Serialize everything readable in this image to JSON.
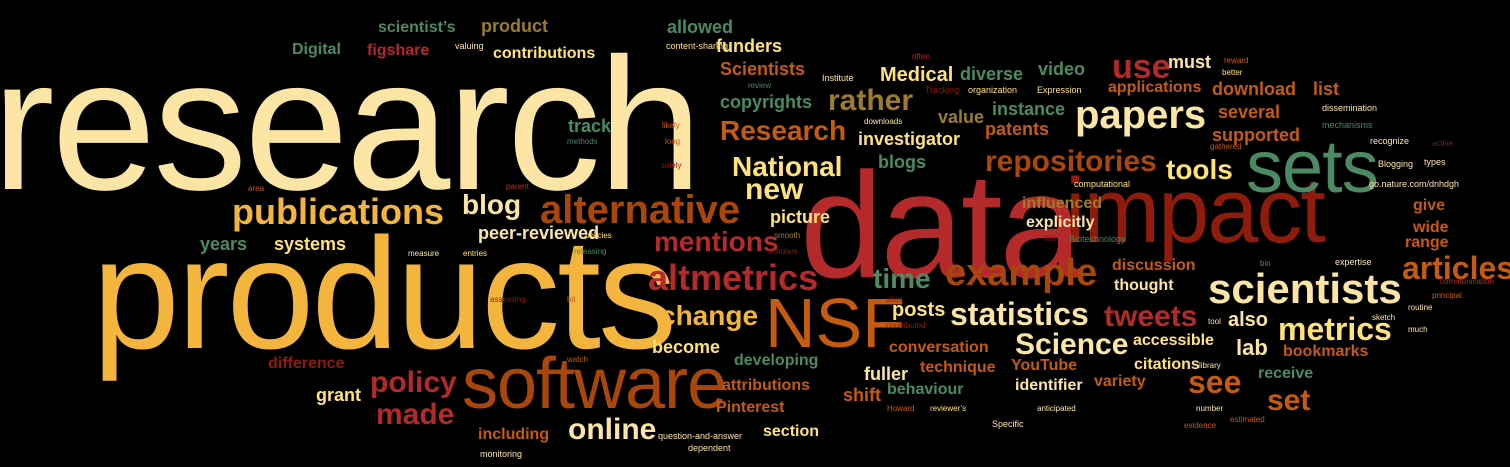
{
  "palette": {
    "cream": "#fde6a5",
    "gold": "#f4b53f",
    "yellow": "#ffe27a",
    "red": "#b4292a",
    "darkred": "#8e1b0c",
    "orange": "#c55a11",
    "rust": "#a8460c",
    "green": "#4b8a63",
    "olive": "#9c7c2c"
  },
  "words": {
    "research": "research",
    "products": "products",
    "data": "data",
    "impact": "impact",
    "software": "software",
    "sets": "sets",
    "nsf": "NSF",
    "papers": "papers",
    "scientists": "scientists",
    "alternative": "alternative",
    "publications": "publications",
    "altmetrics": "altmetrics",
    "example": "example",
    "repositories": "repositories",
    "statistics": "statistics",
    "metrics": "metrics",
    "tweets": "tweets",
    "articles": "articles",
    "Science": "Science",
    "online": "online",
    "policy": "policy",
    "made": "made",
    "mentions": "mentions",
    "change": "change",
    "National": "National",
    "new": "new",
    "blog": "blog",
    "use": "use",
    "Research": "Research",
    "rather": "rather",
    "tools": "tools",
    "set": "set",
    "see": "see",
    "time": "time",
    "Medical": "Medical",
    "posts": "posts",
    "lab": "lab",
    "also": "also",
    "become": "become",
    "fuller": "fuller",
    "shift": "shift",
    "grant": "grant",
    "years": "years",
    "systems": "systems",
    "peerreviewed": "peer-reviewed",
    "picture": "picture",
    "blogs": "blogs",
    "investigator": "investigator",
    "value": "value",
    "patents": "patents",
    "instance": "instance",
    "diverse": "diverse",
    "video": "video",
    "must": "must",
    "applications": "applications",
    "download": "download",
    "list": "list",
    "several": "several",
    "supported": "supported",
    "copyrights": "copyrights",
    "Scientists": "Scientists",
    "track": "track",
    "funders": "funders",
    "allowed": "allowed",
    "product": "product",
    "scientists_s": "scientist’s",
    "Digital": "Digital",
    "figshare": "figshare",
    "contributions": "contributions",
    "influenced": "influenced",
    "explicitly": "explicitly",
    "give": "give",
    "wide": "wide",
    "discussion": "discussion",
    "thought": "thought",
    "range": "range",
    "accessible": "accessible",
    "citations": "citations",
    "receive": "receive",
    "bookmarks": "bookmarks",
    "variety": "variety",
    "YouTube": "YouTube",
    "identifier": "identifier",
    "conversation": "conversation",
    "technique": "technique",
    "behaviour": "behaviour",
    "developing": "developing",
    "attributions": "attributions",
    "Pinterest": "Pinterest",
    "section": "section",
    "including": "including",
    "difference": "difference",
    "valuing": "valuing",
    "contentsharing": "content-sharing",
    "often": "often",
    "Institute": "Institute",
    "review": "review",
    "Tracking": "Tracking",
    "organization": "organization",
    "Expression": "Expression",
    "reward": "reward",
    "better": "better",
    "dissemination": "dissemination",
    "mechanisms": "mechanisms",
    "recognize": "recognize",
    "active": "active",
    "gathered": "gathered",
    "Blogging": "Blogging",
    "types": "types",
    "computational": "computational",
    "gonature": "go.nature.com/dnhdgh",
    "likely": "likely",
    "methods": "methods",
    "long": "long",
    "solely": "solely",
    "downloads": "downloads",
    "area": "area",
    "parent": "parent",
    "measure": "measure",
    "entries": "entries",
    "policies": "policies",
    "releasing": "releasing",
    "smooth": "smooth",
    "scholars": "scholars",
    "five": "five",
    "Biotechnology": "Biotechnology",
    "bio": "bio",
    "expertise": "expertise",
    "communication": "communication",
    "principal": "principal",
    "routine": "routine",
    "sketch": "sketch",
    "much": "much",
    "assessing": "assessing",
    "bit": "bit",
    "sites": "sites",
    "contributed": "contributed",
    "tool": "tool",
    "library": "library",
    "watch": "watch",
    "Howard": "Howard",
    "reviewers": "reviewer’s",
    "anticipated": "anticipated",
    "number": "number",
    "Specific": "Specific",
    "evidence": "evidence",
    "estimated": "estimated",
    "qanda": "question-and-answer",
    "dependent": "dependent",
    "monitoring": "monitoring"
  }
}
